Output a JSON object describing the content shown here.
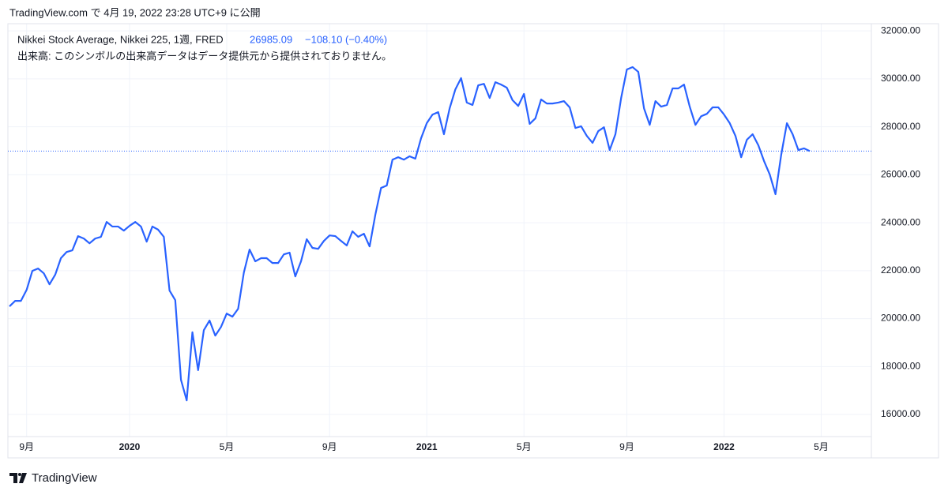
{
  "header": {
    "caption": "TradingView.com で 4月 19, 2022 23:28 UTC+9 に公開"
  },
  "chart_data": {
    "type": "line",
    "title": "Nikkei Stock Average, Nikkei 225, 1週, FRED",
    "last_price": 26985.09,
    "change": "−108.10 (−0.40%)",
    "volume_note": "出来高: このシンボルの出来高データはデータ提供元から提供されておりません。",
    "color": "#2962ff",
    "grid": true,
    "categories": [
      null,
      null,
      null,
      "9月",
      null,
      null,
      null,
      null,
      null,
      null,
      null,
      null,
      null,
      null,
      null,
      null,
      null,
      null,
      null,
      null,
      null,
      "2020",
      null,
      null,
      null,
      null,
      null,
      null,
      null,
      null,
      null,
      null,
      null,
      null,
      null,
      null,
      null,
      null,
      "5月",
      null,
      null,
      null,
      null,
      null,
      null,
      null,
      null,
      null,
      null,
      null,
      null,
      null,
      null,
      null,
      null,
      null,
      "9月",
      null,
      null,
      null,
      null,
      null,
      null,
      null,
      null,
      null,
      null,
      null,
      null,
      null,
      null,
      null,
      null,
      "2021",
      null,
      null,
      null,
      null,
      null,
      null,
      null,
      null,
      null,
      null,
      null,
      null,
      null,
      null,
      null,
      null,
      "5月",
      null,
      null,
      null,
      null,
      null,
      null,
      null,
      null,
      null,
      null,
      null,
      null,
      null,
      null,
      null,
      null,
      null,
      "9月",
      null,
      null,
      null,
      null,
      null,
      null,
      null,
      null,
      null,
      null,
      null,
      null,
      null,
      null,
      null,
      null,
      "2022",
      null,
      null,
      null,
      null,
      null,
      null,
      null,
      null,
      null,
      null,
      null,
      null,
      null,
      null,
      null,
      null,
      "5月"
    ],
    "values": [
      20510,
      20740,
      20740,
      21200,
      21990,
      22090,
      21890,
      21430,
      21830,
      22520,
      22780,
      22850,
      23440,
      23340,
      23140,
      23340,
      23410,
      24030,
      23840,
      23840,
      23670,
      23870,
      24030,
      23840,
      23210,
      23840,
      23710,
      23410,
      21170,
      20770,
      17450,
      16590,
      19430,
      17850,
      19520,
      19920,
      19290,
      19650,
      20210,
      20080,
      20410,
      21920,
      22880,
      22390,
      22520,
      22520,
      22320,
      22320,
      22680,
      22750,
      21760,
      22390,
      23310,
      22950,
      22910,
      23240,
      23470,
      23440,
      23240,
      23050,
      23640,
      23410,
      23540,
      23010,
      24330,
      25450,
      25550,
      26630,
      26730,
      26630,
      26770,
      26670,
      27520,
      28150,
      28510,
      28610,
      27690,
      28770,
      29560,
      30030,
      29010,
      28910,
      29730,
      29790,
      29200,
      29860,
      29760,
      29630,
      29110,
      28870,
      29370,
      28120,
      28350,
      29140,
      28970,
      28970,
      29010,
      29070,
      28810,
      27950,
      28020,
      27620,
      27330,
      27820,
      27980,
      27030,
      27690,
      29200,
      30390,
      30490,
      30290,
      28770,
      28080,
      29070,
      28840,
      28910,
      29600,
      29600,
      29760,
      28840,
      28080,
      28440,
      28540,
      28810,
      28810,
      28510,
      28150,
      27620,
      26730,
      27460,
      27690,
      27230,
      26570,
      26010,
      25190,
      26830,
      28150,
      27690,
      27030,
      27100,
      26985.09,
      null,
      null
    ],
    "ylim": [
      15080,
      32300
    ],
    "yticks": [
      {
        "value": 16000,
        "label": "16000.00"
      },
      {
        "value": 18000,
        "label": "18000.00"
      },
      {
        "value": 20000,
        "label": "20000.00"
      },
      {
        "value": 22000,
        "label": "22000.00"
      },
      {
        "value": 24000,
        "label": "24000.00"
      },
      {
        "value": 26000,
        "label": "26000.00"
      },
      {
        "value": 28000,
        "label": "28000.00"
      },
      {
        "value": 30000,
        "label": "30000.00"
      },
      {
        "value": 32000,
        "label": "32000.00"
      }
    ]
  },
  "footer": {
    "brand": "TradingView"
  }
}
